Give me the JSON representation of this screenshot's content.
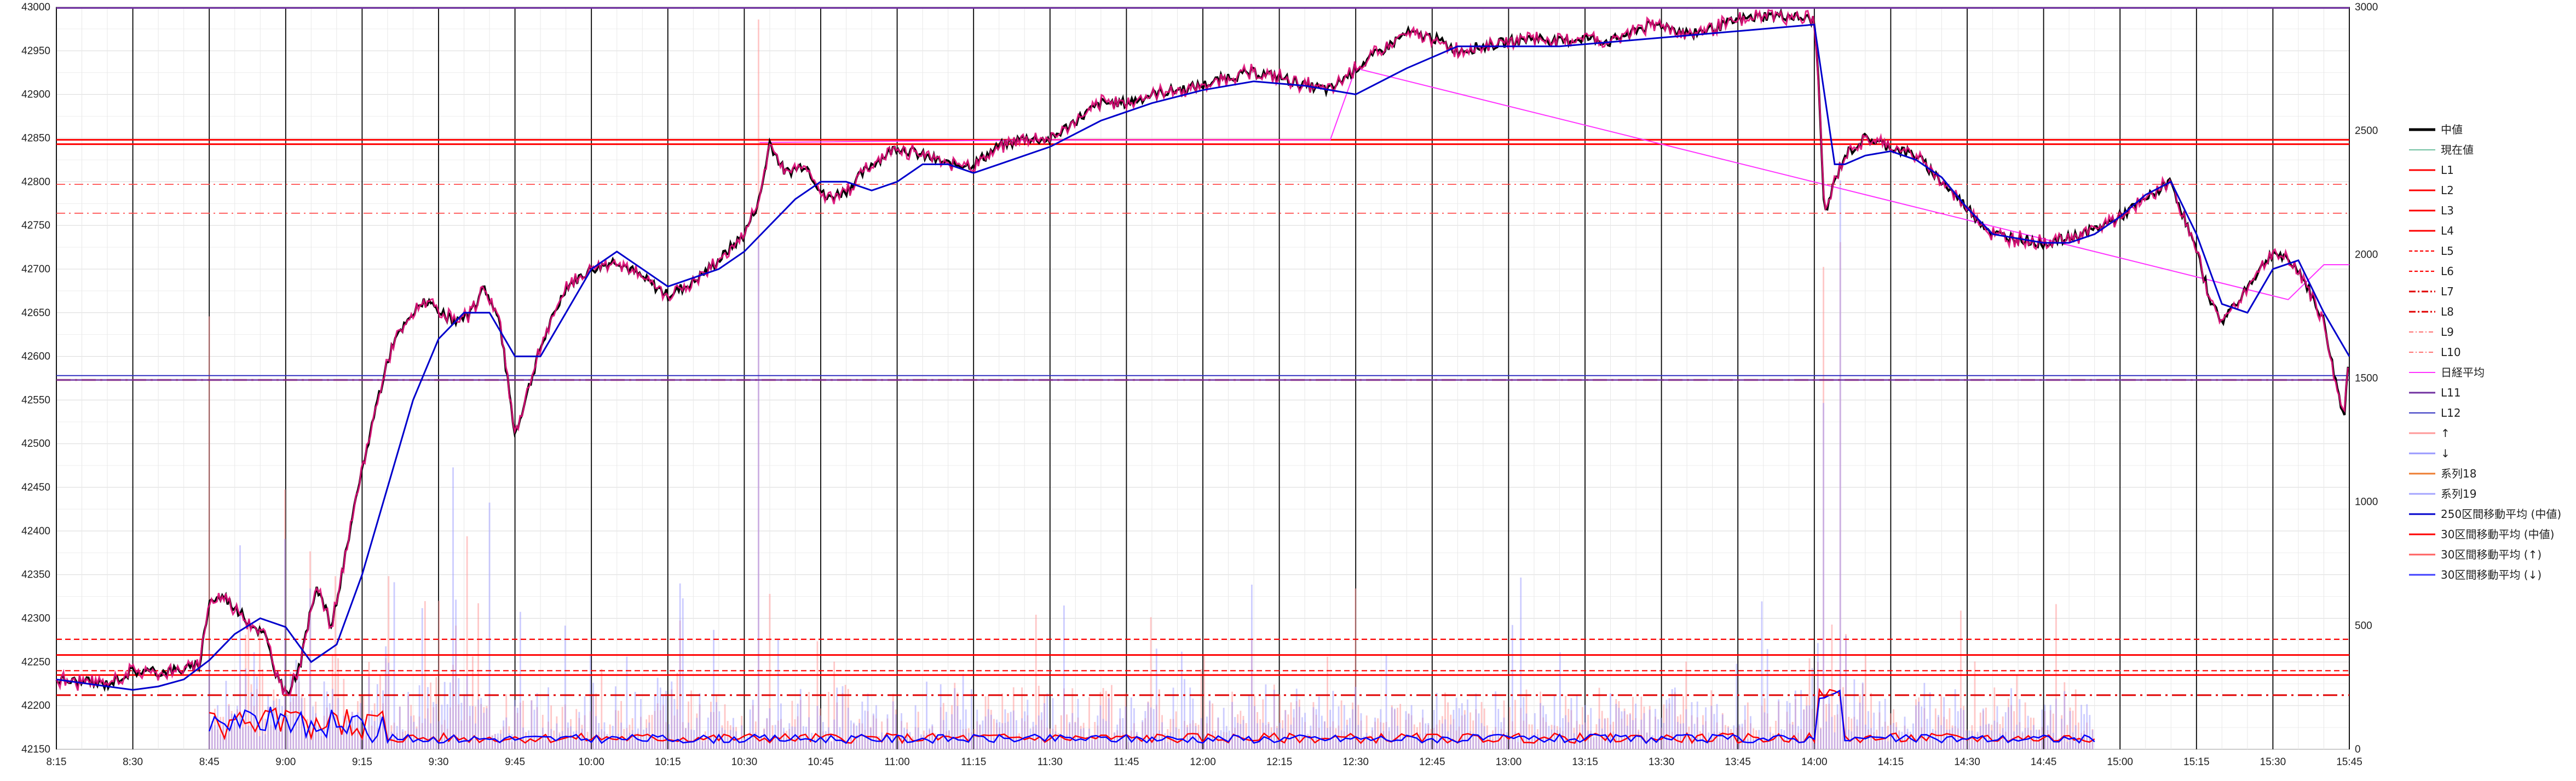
{
  "chart_data": {
    "type": "line",
    "title": "",
    "xlabel": "",
    "ylabel": "",
    "y2label": "",
    "ylim": [
      42150,
      43000
    ],
    "y2lim": [
      0,
      3000
    ],
    "grid": true,
    "legend_placement": "right",
    "x_ticks": [
      "8:15",
      "8:30",
      "8:45",
      "9:00",
      "9:15",
      "9:30",
      "9:45",
      "10:00",
      "10:15",
      "10:30",
      "10:45",
      "11:00",
      "11:15",
      "11:30",
      "11:45",
      "12:00",
      "12:15",
      "12:30",
      "12:45",
      "13:00",
      "13:15",
      "13:30",
      "13:45",
      "14:00",
      "14:15",
      "14:30",
      "14:45",
      "15:00",
      "15:15",
      "15:30",
      "15:45"
    ],
    "y_ticks": [
      42150,
      42200,
      42250,
      42300,
      42350,
      42400,
      42450,
      42500,
      42550,
      42600,
      42650,
      42700,
      42750,
      42800,
      42850,
      42900,
      42950,
      43000
    ],
    "y2_ticks": [
      0,
      500,
      1000,
      1500,
      2000,
      2500,
      3000
    ],
    "legend": [
      "中値",
      "現在値",
      "L1",
      "L2",
      "L3",
      "L4",
      "L5",
      "L6",
      "L7",
      "L8",
      "L9",
      "L10",
      "日経平均",
      "L11",
      "L12",
      "↑",
      "↓",
      "系列18",
      "系列19",
      "250区間移動平均 (中値)",
      "30区間移動平均 (中値)",
      "30区間移動平均 (↑)",
      "30区間移動平均 (↓)"
    ],
    "levels": [
      {
        "name": "L1",
        "value": 42848
      },
      {
        "name": "L2",
        "value": 42843
      },
      {
        "name": "L3",
        "value": 42258
      },
      {
        "name": "L4",
        "value": 42235
      },
      {
        "name": "L5",
        "value": 42276
      },
      {
        "name": "L6",
        "value": 42240
      },
      {
        "name": "L7",
        "value": 42573
      },
      {
        "name": "L8",
        "value": 42212
      },
      {
        "name": "L9",
        "value": 42797
      },
      {
        "name": "L10",
        "value": 42764
      },
      {
        "name": "L11",
        "value": 42573
      },
      {
        "name": "L12",
        "value": 42578
      }
    ],
    "series": [
      {
        "name": "中値",
        "x": [
          "8:15",
          "8:20",
          "8:25",
          "8:30",
          "8:35",
          "8:40",
          "8:43",
          "8:45",
          "8:48",
          "8:52",
          "8:56",
          "8:58",
          "9:00",
          "9:03",
          "9:06",
          "9:09",
          "9:12",
          "9:15",
          "9:18",
          "9:21",
          "9:24",
          "9:27",
          "9:30",
          "9:33",
          "9:36",
          "9:39",
          "9:42",
          "9:45",
          "9:50",
          "9:55",
          "10:00",
          "10:05",
          "10:10",
          "10:15",
          "10:20",
          "10:25",
          "10:30",
          "10:33",
          "10:35",
          "10:38",
          "10:42",
          "10:46",
          "10:50",
          "10:55",
          "11:00",
          "11:05",
          "11:10",
          "11:15",
          "11:20",
          "11:25",
          "11:30",
          "11:35",
          "11:40",
          "11:45",
          "11:50",
          "11:55",
          "12:00",
          "12:05",
          "12:10",
          "12:15",
          "12:20",
          "12:25",
          "12:30",
          "12:35",
          "12:40",
          "12:45",
          "12:50",
          "12:55",
          "13:00",
          "13:05",
          "13:10",
          "13:15",
          "13:20",
          "13:25",
          "13:30",
          "13:35",
          "13:40",
          "13:45",
          "13:50",
          "13:55",
          "14:00",
          "14:01",
          "14:02",
          "14:04",
          "14:06",
          "14:10",
          "14:15",
          "14:20",
          "14:25",
          "14:30",
          "14:35",
          "14:40",
          "14:45",
          "14:50",
          "14:55",
          "15:00",
          "15:05",
          "15:10",
          "15:15",
          "15:18",
          "15:20",
          "15:25",
          "15:30",
          "15:35",
          "15:40",
          "15:42",
          "15:44",
          "15:45"
        ],
        "values": [
          42230,
          42227,
          42225,
          42240,
          42238,
          42242,
          42245,
          42320,
          42325,
          42300,
          42280,
          42240,
          42210,
          42250,
          42340,
          42290,
          42380,
          42470,
          42550,
          42615,
          42640,
          42665,
          42650,
          42640,
          42645,
          42680,
          42640,
          42510,
          42610,
          42680,
          42700,
          42710,
          42690,
          42670,
          42685,
          42710,
          42740,
          42780,
          42845,
          42810,
          42820,
          42780,
          42790,
          42820,
          42840,
          42830,
          42820,
          42820,
          42840,
          42850,
          42848,
          42870,
          42890,
          42890,
          42900,
          42905,
          42910,
          42920,
          42925,
          42920,
          42910,
          42905,
          42930,
          42950,
          42970,
          42965,
          42950,
          42955,
          42960,
          42965,
          42960,
          42965,
          42960,
          42975,
          42980,
          42970,
          42975,
          42985,
          42990,
          42990,
          42985,
          42900,
          42760,
          42800,
          42830,
          42850,
          42840,
          42830,
          42800,
          42770,
          42740,
          42735,
          42730,
          42735,
          42745,
          42760,
          42780,
          42800,
          42720,
          42660,
          42640,
          42680,
          42720,
          42700,
          42640,
          42580,
          42530,
          42610
        ]
      },
      {
        "name": "250区間移動平均 (中値)",
        "x": [
          "8:15",
          "8:30",
          "8:35",
          "8:40",
          "8:45",
          "8:50",
          "8:55",
          "9:00",
          "9:05",
          "9:10",
          "9:15",
          "9:20",
          "9:25",
          "9:30",
          "9:35",
          "9:40",
          "9:45",
          "9:50",
          "9:55",
          "10:00",
          "10:05",
          "10:10",
          "10:15",
          "10:20",
          "10:25",
          "10:30",
          "10:35",
          "10:40",
          "10:45",
          "10:50",
          "10:55",
          "11:00",
          "11:05",
          "11:10",
          "11:15",
          "11:20",
          "11:30",
          "11:40",
          "11:50",
          "12:00",
          "12:10",
          "12:20",
          "12:30",
          "12:40",
          "12:50",
          "13:00",
          "13:10",
          "13:20",
          "13:30",
          "13:40",
          "13:50",
          "14:00",
          "14:02",
          "14:04",
          "14:06",
          "14:10",
          "14:15",
          "14:20",
          "14:25",
          "14:30",
          "14:35",
          "14:40",
          "14:45",
          "14:50",
          "14:55",
          "15:00",
          "15:05",
          "15:10",
          "15:15",
          "15:20",
          "15:25",
          "15:30",
          "15:35",
          "15:40",
          "15:45"
        ],
        "values": [
          42230,
          42218,
          42222,
          42230,
          42252,
          42282,
          42300,
          42290,
          42250,
          42270,
          42350,
          42450,
          42550,
          42620,
          42650,
          42650,
          42600,
          42600,
          42650,
          42700,
          42720,
          42700,
          42680,
          42690,
          42700,
          42720,
          42750,
          42780,
          42800,
          42800,
          42790,
          42800,
          42820,
          42820,
          42810,
          42820,
          42840,
          42870,
          42890,
          42905,
          42915,
          42910,
          42900,
          42930,
          42955,
          42955,
          42955,
          42960,
          42965,
          42970,
          42975,
          42980,
          42900,
          42820,
          42820,
          42830,
          42835,
          42825,
          42805,
          42770,
          42740,
          42735,
          42730,
          42730,
          42740,
          42760,
          42785,
          42800,
          42740,
          42660,
          42650,
          42700,
          42710,
          42650,
          42600
        ]
      },
      {
        "name": "日経平均",
        "x": [
          "10:33",
          "11:30",
          "12:25",
          "12:30",
          "15:33",
          "15:40",
          "15:45"
        ],
        "values": [
          42845,
          42848,
          42848,
          42930,
          42665,
          42705,
          42705
        ]
      },
      {
        "name": "↑",
        "x": [
          "8:45",
          "9:00",
          "9:05",
          "9:10",
          "9:20",
          "9:30",
          "10:33",
          "12:30",
          "14:02",
          "14:05"
        ],
        "values": [
          1750,
          1050,
          800,
          700,
          700,
          600,
          2950,
          650,
          1950,
          2050
        ]
      },
      {
        "name": "↓",
        "x": [
          "8:45",
          "9:00",
          "9:05",
          "9:20",
          "9:40",
          "9:55",
          "10:33",
          "14:02",
          "14:05"
        ],
        "values": [
          400,
          850,
          650,
          350,
          400,
          500,
          2050,
          1400,
          2300
        ]
      }
    ]
  }
}
